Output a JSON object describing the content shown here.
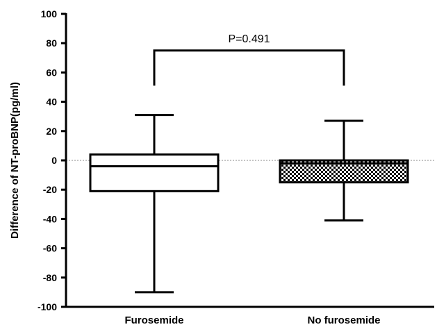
{
  "chart_data": {
    "type": "box",
    "title": "",
    "xlabel": "",
    "ylabel": "Difference of NT-proBNP(pg/ml)",
    "ylim": [
      -100,
      100
    ],
    "yticks": [
      100,
      80,
      60,
      40,
      20,
      0,
      -20,
      -40,
      -60,
      -80,
      -100
    ],
    "reference_line": 0,
    "categories": [
      "Furosemide",
      "No furosemide"
    ],
    "series": [
      {
        "category": "Furosemide",
        "min": -90,
        "q1": -21,
        "median": -4,
        "q3": 4,
        "max": 31,
        "fill": "white"
      },
      {
        "category": "No furosemide",
        "min": -41,
        "q1": -15,
        "median": -2,
        "q3": 0,
        "max": 27,
        "fill": "checkered"
      }
    ],
    "annotation": {
      "text": "P=0.491",
      "bracket_y": 75,
      "left_end_y": 51,
      "right_end_y": 51
    }
  }
}
